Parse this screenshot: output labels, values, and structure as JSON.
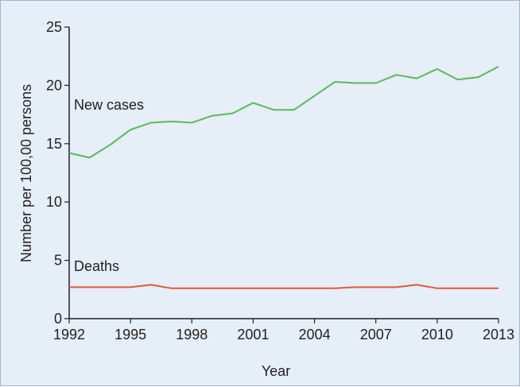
{
  "chart_data": {
    "type": "line",
    "title": "",
    "xlabel": "Year",
    "ylabel": "Number per 100,00 persons",
    "xlim": [
      1992,
      2013
    ],
    "ylim": [
      0,
      25
    ],
    "x_ticks": [
      1992,
      1995,
      1998,
      2001,
      2004,
      2007,
      2010,
      2013
    ],
    "y_ticks": [
      0,
      5,
      10,
      15,
      20,
      25
    ],
    "grid": false,
    "legend": "none",
    "x": [
      1992,
      1993,
      1994,
      1995,
      1996,
      1997,
      1998,
      1999,
      2000,
      2001,
      2002,
      2003,
      2004,
      2005,
      2006,
      2007,
      2008,
      2009,
      2010,
      2011,
      2012,
      2013
    ],
    "series": [
      {
        "name": "New cases",
        "color": "#5cb85c",
        "values": [
          14.2,
          13.8,
          14.9,
          16.2,
          16.8,
          16.9,
          16.8,
          17.4,
          17.6,
          18.5,
          17.9,
          17.9,
          19.1,
          20.3,
          20.2,
          20.2,
          20.9,
          20.6,
          21.4,
          20.5,
          20.7,
          21.6
        ]
      },
      {
        "name": "Deaths",
        "color": "#e05a3a",
        "values": [
          2.7,
          2.7,
          2.7,
          2.7,
          2.9,
          2.6,
          2.6,
          2.6,
          2.6,
          2.6,
          2.6,
          2.6,
          2.6,
          2.6,
          2.7,
          2.7,
          2.7,
          2.9,
          2.6,
          2.6,
          2.6,
          2.6
        ]
      }
    ]
  }
}
